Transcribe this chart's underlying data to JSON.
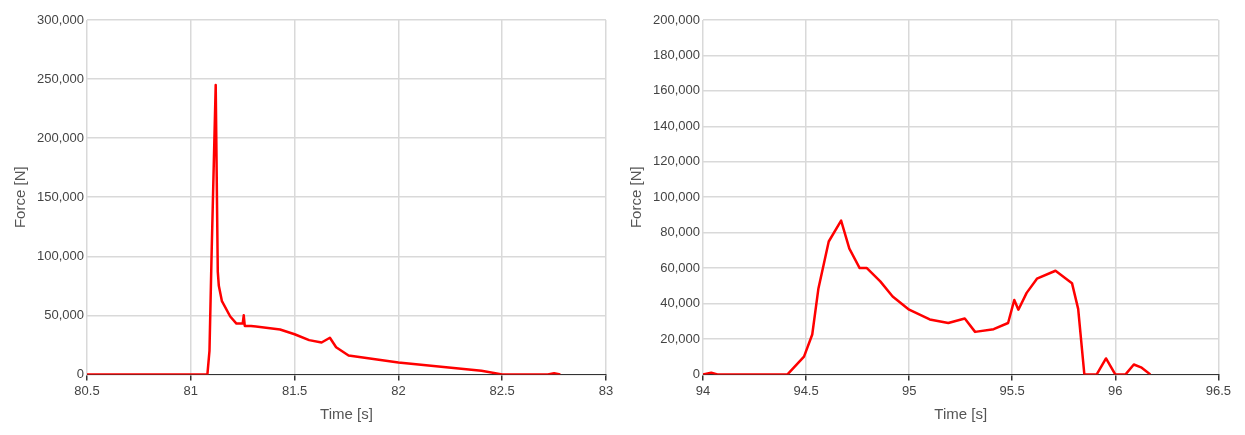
{
  "chart_data": [
    {
      "type": "line",
      "xlabel": "Time [s]",
      "ylabel": "Force [N]",
      "xlim": [
        80.5,
        83
      ],
      "ylim": [
        0,
        300000
      ],
      "xticks": [
        80.5,
        81,
        81.5,
        82,
        82.5,
        83
      ],
      "yticks": [
        0,
        {
          "value": 50000,
          "label": "50,000"
        },
        {
          "value": 100000,
          "label": "100,000"
        },
        {
          "value": 150000,
          "label": "150,000"
        },
        {
          "value": 200000,
          "label": "200,000"
        },
        {
          "value": 250000,
          "label": "250,000"
        },
        {
          "value": 300000,
          "label": "300,000"
        }
      ],
      "grid": true,
      "legend": false,
      "marker": "none",
      "line_style": "solid",
      "series": [
        {
          "color": "#ff0000",
          "x": [
            80.5,
            81.08,
            81.09,
            81.1,
            81.12,
            81.13,
            81.135,
            81.15,
            81.19,
            81.22,
            81.25,
            81.255,
            81.26,
            81.29,
            81.43,
            81.5,
            81.57,
            81.63,
            81.67,
            81.7,
            81.76,
            82.0,
            82.23,
            82.4,
            82.5,
            82.72,
            82.75,
            82.78
          ],
          "values": [
            0,
            0,
            20000,
            100000,
            245000,
            87000,
            75000,
            62000,
            49000,
            43000,
            43000,
            50000,
            41000,
            41000,
            38000,
            34000,
            29000,
            27000,
            31000,
            23000,
            16000,
            10000,
            6000,
            3000,
            0,
            0,
            1000,
            0
          ]
        }
      ]
    },
    {
      "type": "line",
      "xlabel": "Time [s]",
      "ylabel": "Force [N]",
      "xlim": [
        94,
        96.5
      ],
      "ylim": [
        0,
        200000
      ],
      "xticks": [
        94,
        94.5,
        95,
        95.5,
        96,
        96.5
      ],
      "yticks": [
        0,
        {
          "value": 20000,
          "label": "20,000"
        },
        {
          "value": 40000,
          "label": "40,000"
        },
        {
          "value": 60000,
          "label": "60,000"
        },
        {
          "value": 80000,
          "label": "80,000"
        },
        {
          "value": 100000,
          "label": "100,000"
        },
        {
          "value": 120000,
          "label": "120,000"
        },
        {
          "value": 140000,
          "label": "140,000"
        },
        {
          "value": 160000,
          "label": "160,000"
        },
        {
          "value": 180000,
          "label": "180,000"
        },
        {
          "value": 200000,
          "label": "200,000"
        }
      ],
      "grid": true,
      "legend": false,
      "marker": "none",
      "line_style": "solid",
      "series": [
        {
          "color": "#ff0000",
          "x": [
            94,
            94.04,
            94.07,
            94.41,
            94.49,
            94.53,
            94.56,
            94.61,
            94.67,
            94.71,
            94.76,
            94.795,
            94.86,
            94.92,
            95.0,
            95.1,
            95.19,
            95.27,
            95.32,
            95.41,
            95.48,
            95.51,
            95.53,
            95.57,
            95.62,
            95.71,
            95.79,
            95.82,
            95.85,
            95.91,
            95.955,
            96.0,
            96.05,
            96.09,
            96.125,
            96.17
          ],
          "values": [
            0,
            1000,
            0,
            0,
            10000,
            22500,
            48500,
            75000,
            86800,
            71000,
            60000,
            60000,
            52500,
            44000,
            36500,
            31000,
            29000,
            31500,
            24000,
            25500,
            29000,
            42000,
            36500,
            46000,
            54000,
            58500,
            51500,
            37000,
            0,
            0,
            9000,
            0,
            0,
            5600,
            4000,
            0
          ]
        }
      ]
    }
  ]
}
